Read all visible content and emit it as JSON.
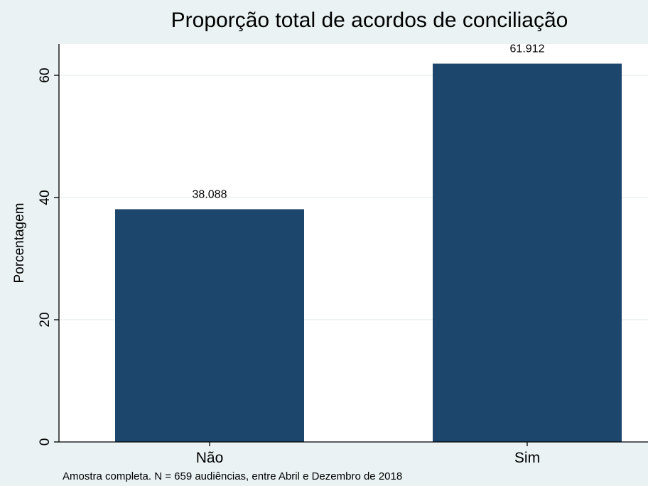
{
  "chart_data": {
    "type": "bar",
    "title": "Proporção total de acordos de conciliação",
    "ylabel": "Porcentagem",
    "xlabel": "",
    "categories": [
      "Não",
      "Sim"
    ],
    "values": [
      38.088,
      61.912
    ],
    "data_labels": [
      "38.088",
      "61.912"
    ],
    "yticks": [
      0,
      20,
      40,
      60
    ],
    "ylim": [
      0,
      65
    ],
    "grid": true,
    "note": "Amostra completa. N = 659 audiências, entre Abril e Dezembro de 2018"
  },
  "colors": {
    "bar": "#1c466c",
    "background": "#eaf2f3",
    "plot_background": "#ffffff",
    "grid": "#e6eeee",
    "axis": "#000000"
  }
}
